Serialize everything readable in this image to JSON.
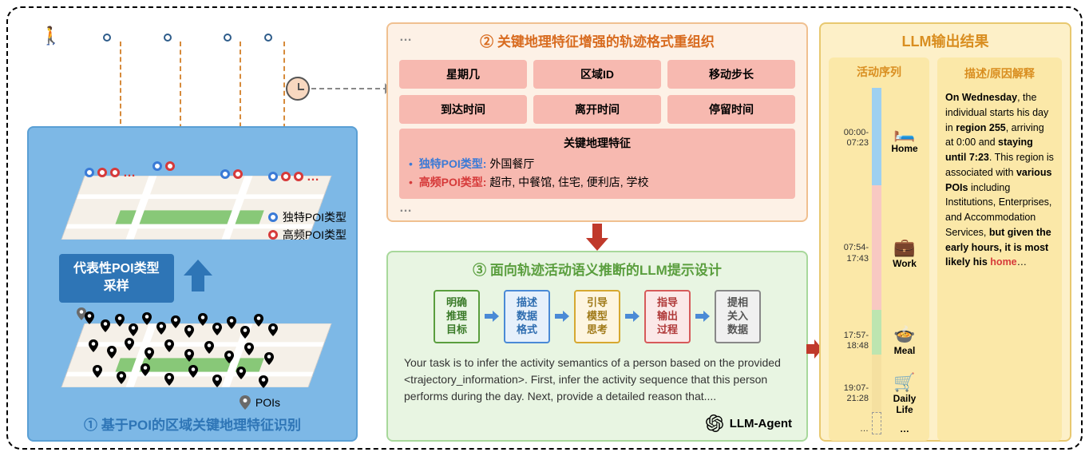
{
  "panel1": {
    "title": "① 基于POI的区域关键地理特征识别",
    "sample_label": "代表性POI类型\n采样",
    "legend_unique": "独特POI类型",
    "legend_freq": "高频POI类型",
    "legend_pois": "POIs",
    "colors": {
      "bg": "#7db8e6",
      "unique": "#3a7ad6",
      "freq": "#d63a3a",
      "pin": "#6a6a6a"
    }
  },
  "panel2": {
    "title": "② 关键地理特征增强的轨迹格式重组织",
    "dots": "…",
    "fields": [
      "星期几",
      "区域ID",
      "移动步长",
      "到达时间",
      "离开时间",
      "停留时间"
    ],
    "geo_title": "关键地理特征",
    "unique_label": "独特POI类型:",
    "unique_value": "外国餐厅",
    "freq_label": "高频POI类型:",
    "freq_value": "超市, 中餐馆, 住宅, 便利店, 学校",
    "colors": {
      "bg": "#fdf1e6",
      "cell": "#f7b9b0"
    }
  },
  "panel3": {
    "title": "③ 面向轨迹活动语义推断的LLM提示设计",
    "steps": [
      "明确\n推理\n目标",
      "描述\n数据\n格式",
      "引导\n模型\n思考",
      "指导\n输出\n过程",
      "提相\n关入\n数据"
    ],
    "step_colors": [
      "green",
      "blue",
      "yellow",
      "red",
      "gray"
    ],
    "prompt_text": "Your task is to infer the activity semantics of a person based on the provided <trajectory_information>. First, infer the activity sequence that this person performs during the day. Next, provide a detailed reason that....",
    "agent_label": "LLM-Agent",
    "colors": {
      "bg": "#e8f5e2"
    }
  },
  "panel4": {
    "title": "LLM输出结果",
    "left_sub": "活动序列",
    "right_sub": "描述/原因解释",
    "timeline": [
      {
        "time": "00:00-\n07:23",
        "label": "Home",
        "icon": "bed",
        "color": "#9ed0f0",
        "flex": 2.2
      },
      {
        "time": "07:54-\n17:43",
        "label": "Work",
        "icon": "work",
        "color": "#f8c9c2",
        "flex": 2.8
      },
      {
        "time": "17:57-\n18:48",
        "label": "Meal",
        "icon": "meal",
        "color": "#bde5b0",
        "flex": 1.0
      },
      {
        "time": "19:07-\n21:28",
        "label": "Daily Life",
        "icon": "cart",
        "color": "#f5e0a0",
        "flex": 1.3
      }
    ],
    "ellipsis": "…",
    "desc_html": "<b>On Wednesday</b>, the individual starts his day in <b>region 255</b>, arriving at 0:00 and <b>staying until 7:23</b>. This region is associated with <b>various POIs</b> including Institutions, Enterprises, and Accommodation Services, <b>but given the early hours, it is most likely his</b> <span style='color:#d63a3a;font-weight:bold'>home</span>…",
    "colors": {
      "bg": "#fdf0c8",
      "card": "#fbe8a8"
    }
  }
}
